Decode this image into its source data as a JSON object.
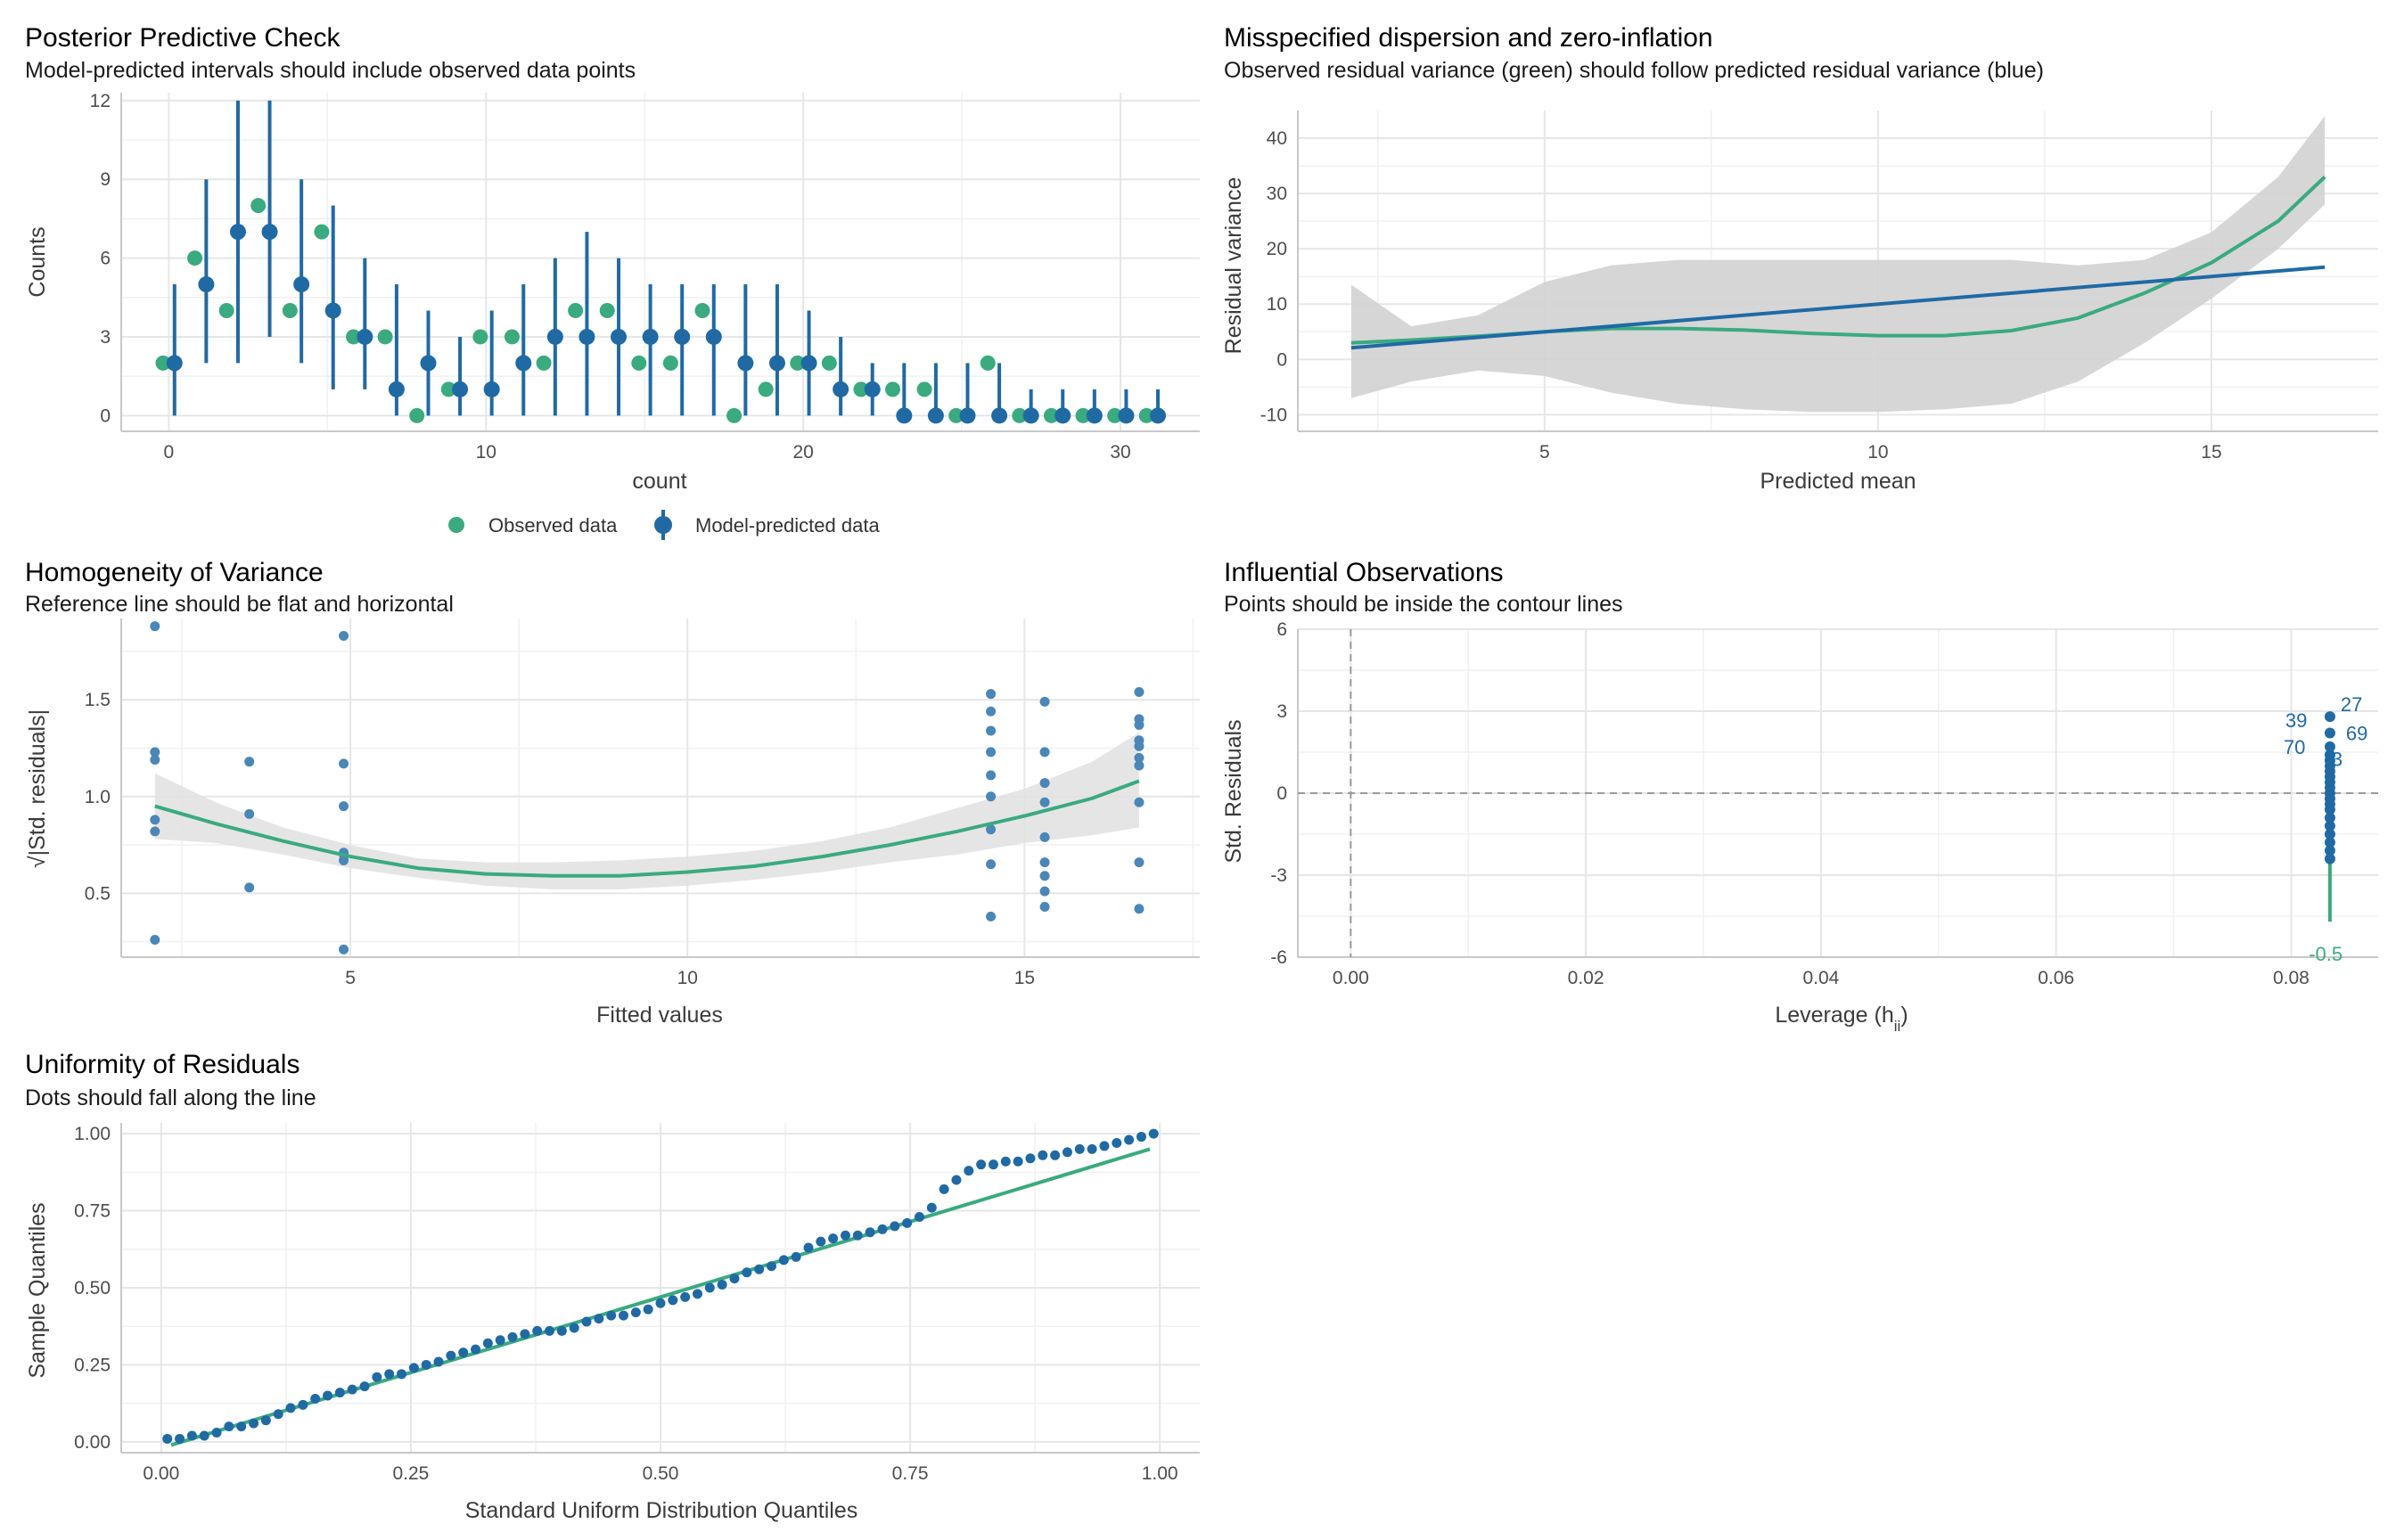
{
  "colors": {
    "green": "#3aaa7f",
    "blue": "#1f6aa5",
    "blue_light": "#4a86b8",
    "grid": "#e6e6e6",
    "band": "#d2d2d2"
  },
  "chart_data": [
    {
      "id": "ppc",
      "type": "scatter",
      "title": "Posterior Predictive Check",
      "subtitle": "Model-predicted intervals should include observed data points",
      "xlabel": "count",
      "ylabel": "Counts",
      "xlim": [
        -1.5,
        32.5
      ],
      "ylim": [
        -0.6,
        12.3
      ],
      "xticks": [
        0,
        10,
        20,
        30
      ],
      "yticks": [
        0,
        3,
        6,
        9,
        12
      ],
      "legend": {
        "position": "bottom",
        "entries": [
          "Observed data",
          "Model-predicted data"
        ]
      },
      "observed": {
        "x": [
          0,
          1,
          2,
          3,
          4,
          5,
          6,
          7,
          8,
          9,
          10,
          11,
          12,
          13,
          14,
          15,
          16,
          17,
          18,
          19,
          20,
          21,
          22,
          23,
          24,
          25,
          26,
          27,
          28,
          29,
          30,
          31
        ],
        "y": [
          2,
          6,
          4,
          8,
          4,
          7,
          3,
          3,
          0,
          1,
          3,
          3,
          2,
          4,
          4,
          2,
          2,
          4,
          0,
          1,
          2,
          2,
          1,
          1,
          1,
          0,
          2,
          0,
          0,
          0,
          0,
          0
        ]
      },
      "predicted": {
        "x": [
          0,
          1,
          2,
          3,
          4,
          5,
          6,
          7,
          8,
          9,
          10,
          11,
          12,
          13,
          14,
          15,
          16,
          17,
          18,
          19,
          20,
          21,
          22,
          23,
          24,
          25,
          26,
          27,
          28,
          29,
          30,
          31
        ],
        "median": [
          2,
          5,
          7,
          7,
          5,
          4,
          3,
          1,
          2,
          1,
          1,
          2,
          3,
          3,
          3,
          3,
          3,
          3,
          2,
          2,
          2,
          1,
          1,
          0,
          0,
          0,
          0,
          0,
          0,
          0,
          0,
          0
        ],
        "low": [
          0,
          2,
          2,
          3,
          2,
          1,
          1,
          0,
          0,
          0,
          0,
          0,
          0,
          0,
          0,
          0,
          0,
          0,
          0,
          0,
          0,
          0,
          0,
          0,
          0,
          0,
          0,
          0,
          0,
          0,
          0,
          0
        ],
        "high": [
          5,
          9,
          12,
          12,
          9,
          8,
          6,
          5,
          4,
          3,
          4,
          5,
          6,
          7,
          6,
          5,
          5,
          5,
          5,
          5,
          4,
          3,
          2,
          2,
          2,
          2,
          2,
          1,
          1,
          1,
          1,
          1
        ]
      }
    },
    {
      "id": "dispersion",
      "type": "line",
      "title": "Misspecified dispersion and zero-inflation",
      "subtitle": "Observed residual variance (green) should follow predicted residual variance (blue)",
      "xlabel": "Predicted mean",
      "ylabel": "Residual variance",
      "xlim": [
        1.3,
        17.5
      ],
      "ylim": [
        -13,
        45
      ],
      "xticks": [
        5,
        10,
        15
      ],
      "yticks": [
        -10,
        0,
        10,
        20,
        30,
        40
      ],
      "series": [
        {
          "name": "observed",
          "color": "green",
          "x": [
            2.1,
            3,
            4,
            5,
            6,
            7,
            8,
            9,
            10,
            11,
            12,
            13,
            14,
            15,
            16,
            16.7
          ],
          "y": [
            3,
            3.5,
            4.2,
            5,
            5.6,
            5.6,
            5.3,
            4.7,
            4.3,
            4.3,
            5.2,
            7.5,
            12,
            17.5,
            25,
            33
          ]
        },
        {
          "name": "predicted",
          "color": "blue",
          "x": [
            2.1,
            16.7
          ],
          "y": [
            2.1,
            16.7
          ]
        }
      ],
      "band": {
        "x": [
          2.1,
          3,
          4,
          5,
          6,
          7,
          8,
          9,
          10,
          11,
          12,
          13,
          14,
          15,
          16,
          16.7
        ],
        "lower": [
          -7,
          -4,
          -2,
          -3,
          -6,
          -8,
          -9,
          -9.5,
          -9.5,
          -9,
          -8,
          -4,
          3,
          11,
          20,
          28
        ],
        "upper": [
          13.5,
          6,
          8,
          14,
          17,
          18,
          18,
          18,
          18,
          18,
          18,
          17,
          18,
          23,
          33,
          44
        ]
      }
    },
    {
      "id": "homogeneity",
      "type": "scatter",
      "title": "Homogeneity of Variance",
      "subtitle": "Reference line should be flat and horizontal",
      "xlabel": "Fitted values",
      "ylabel": "√|Std. residuals|",
      "xlim": [
        1.6,
        17.6
      ],
      "ylim": [
        0.17,
        1.92
      ],
      "xticks": [
        5,
        10,
        15
      ],
      "yticks": [
        0.5,
        1.0,
        1.5
      ],
      "ytick_labels": [
        "0.5",
        "1.0",
        "1.5"
      ],
      "points": {
        "x": [
          2.1,
          2.1,
          2.1,
          2.1,
          2.1,
          2.1,
          3.5,
          3.5,
          3.5,
          4.9,
          4.9,
          4.9,
          4.9,
          4.9,
          4.9,
          4.9,
          14.5,
          14.5,
          14.5,
          14.5,
          14.5,
          14.5,
          14.5,
          14.5,
          14.5,
          15.3,
          15.3,
          15.3,
          15.3,
          15.3,
          15.3,
          15.3,
          15.3,
          15.3,
          16.7,
          16.7,
          16.7,
          16.7,
          16.7,
          16.7,
          16.7,
          16.7,
          16.7,
          16.7
        ],
        "y": [
          1.88,
          1.23,
          1.19,
          0.88,
          0.82,
          0.26,
          1.18,
          0.91,
          0.53,
          1.83,
          1.17,
          0.95,
          0.71,
          0.7,
          0.67,
          0.21,
          1.53,
          1.44,
          1.23,
          1.11,
          0.83,
          0.65,
          0.38,
          1.0,
          1.34,
          1.49,
          1.23,
          1.07,
          0.97,
          0.79,
          0.66,
          0.59,
          0.51,
          0.43,
          1.54,
          1.4,
          1.37,
          1.26,
          1.2,
          1.16,
          0.97,
          0.66,
          0.42,
          1.29
        ]
      },
      "smooth": {
        "x": [
          2.1,
          3,
          4,
          5,
          6,
          7,
          8,
          9,
          10,
          11,
          12,
          13,
          14,
          15,
          16,
          16.7
        ],
        "y": [
          0.95,
          0.86,
          0.77,
          0.69,
          0.63,
          0.6,
          0.59,
          0.59,
          0.61,
          0.64,
          0.69,
          0.75,
          0.82,
          0.9,
          0.99,
          1.08
        ],
        "lower": [
          0.78,
          0.76,
          0.7,
          0.63,
          0.58,
          0.54,
          0.52,
          0.52,
          0.54,
          0.57,
          0.61,
          0.66,
          0.7,
          0.76,
          0.8,
          0.84
        ],
        "upper": [
          1.12,
          0.97,
          0.84,
          0.75,
          0.68,
          0.66,
          0.66,
          0.67,
          0.69,
          0.72,
          0.77,
          0.84,
          0.94,
          1.04,
          1.18,
          1.33
        ]
      }
    },
    {
      "id": "influential",
      "type": "scatter",
      "title": "Influential Observations",
      "subtitle": "Points should be inside the contour lines",
      "xlabel": "Leverage (hii)",
      "xlabel_base": "Leverage (h",
      "xlabel_sub": "ii",
      "xlabel_close": ")",
      "ylabel": "Std. Residuals",
      "xlim": [
        -0.0045,
        0.0874
      ],
      "ylim": [
        -6,
        6
      ],
      "xticks": [
        0.0,
        0.02,
        0.04,
        0.06,
        0.08
      ],
      "xtick_labels": [
        "0.00",
        "0.02",
        "0.04",
        "0.06",
        "0.08"
      ],
      "yticks": [
        -6,
        -3,
        0,
        3,
        6
      ],
      "points": {
        "x": [
          0.0833,
          0.0833,
          0.0833,
          0.0833,
          0.0833,
          0.0833,
          0.0833,
          0.0833,
          0.0833,
          0.0833,
          0.0833,
          0.0833,
          0.0833,
          0.0833,
          0.0833,
          0.0833,
          0.0833,
          0.0833,
          0.0833,
          0.0833
        ],
        "y": [
          2.8,
          2.2,
          1.7,
          1.4,
          1.2,
          1.0,
          0.8,
          0.6,
          0.4,
          0.2,
          0.0,
          -0.2,
          -0.4,
          -0.6,
          -0.9,
          -1.2,
          -1.5,
          -1.8,
          -2.1,
          -2.4
        ]
      },
      "labels": [
        {
          "text": "27",
          "x": 0.0833,
          "y": 2.8,
          "dx": 12,
          "dy": -6
        },
        {
          "text": "39",
          "x": 0.0833,
          "y": 2.8,
          "dx": -50,
          "dy": 12
        },
        {
          "text": "69",
          "x": 0.0833,
          "y": 2.2,
          "dx": 18,
          "dy": 8
        },
        {
          "text": "70",
          "x": 0.0833,
          "y": 1.7,
          "dx": -52,
          "dy": 8
        },
        {
          "text": "3",
          "x": 0.0833,
          "y": 1.0,
          "dx": 2,
          "dy": 0
        }
      ],
      "edge_label": {
        "text": "-0.5",
        "x": 0.0815,
        "y": -6
      },
      "smooth": {
        "x": [
          0.0833,
          0.0833
        ],
        "y": [
          1.2,
          -4.7
        ]
      }
    },
    {
      "id": "uniformity",
      "type": "scatter",
      "title": "Uniformity of Residuals",
      "subtitle": "Dots should fall along the line",
      "xlabel": "Standard Uniform Distribution Quantiles",
      "ylabel": "Sample Quantiles",
      "xlim": [
        -0.04,
        1.04
      ],
      "ylim": [
        -0.035,
        1.035
      ],
      "xticks": [
        0,
        0.25,
        0.5,
        0.75,
        1
      ],
      "xtick_labels": [
        "0.00",
        "0.25",
        "0.50",
        "0.75",
        "1.00"
      ],
      "yticks": [
        0,
        0.25,
        0.5,
        0.75,
        1
      ],
      "ytick_labels": [
        "0.00",
        "0.25",
        "0.50",
        "0.75",
        "1.00"
      ],
      "points": {
        "y": [
          0.01,
          0.01,
          0.02,
          0.02,
          0.03,
          0.05,
          0.05,
          0.06,
          0.07,
          0.09,
          0.11,
          0.12,
          0.14,
          0.15,
          0.16,
          0.17,
          0.18,
          0.21,
          0.22,
          0.22,
          0.24,
          0.25,
          0.26,
          0.28,
          0.29,
          0.3,
          0.32,
          0.33,
          0.34,
          0.35,
          0.36,
          0.36,
          0.36,
          0.37,
          0.39,
          0.4,
          0.41,
          0.41,
          0.42,
          0.43,
          0.45,
          0.46,
          0.47,
          0.48,
          0.5,
          0.51,
          0.53,
          0.55,
          0.56,
          0.57,
          0.59,
          0.6,
          0.63,
          0.65,
          0.66,
          0.67,
          0.67,
          0.68,
          0.69,
          0.7,
          0.71,
          0.73,
          0.76,
          0.82,
          0.85,
          0.88,
          0.9,
          0.9,
          0.91,
          0.91,
          0.92,
          0.93,
          0.93,
          0.94,
          0.95,
          0.95,
          0.96,
          0.97,
          0.98,
          0.99,
          1.0
        ]
      },
      "reference_line": {
        "x": [
          0.01,
          0.99
        ],
        "y": [
          -0.01,
          0.95
        ]
      }
    }
  ]
}
